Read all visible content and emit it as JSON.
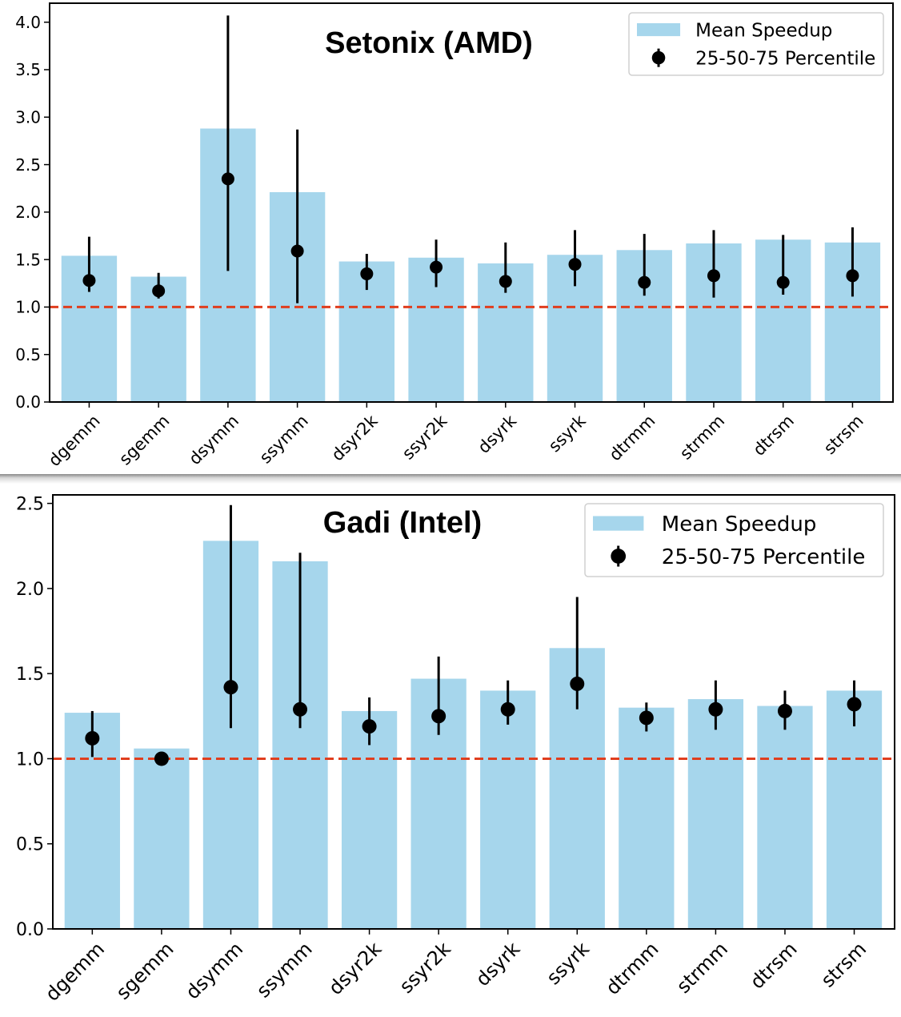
{
  "chart_data": [
    {
      "type": "bar",
      "title": "Setonix (AMD)",
      "xlabel": "",
      "ylabel": "",
      "ylim": [
        0,
        4.2
      ],
      "yticks": [
        "0.0",
        "0.5",
        "1.0",
        "1.5",
        "2.0",
        "2.5",
        "3.0",
        "3.5",
        "4.0"
      ],
      "categories": [
        "dgemm",
        "sgemm",
        "dsymm",
        "ssymm",
        "dsyr2k",
        "ssyr2k",
        "dsyrk",
        "ssyrk",
        "dtrmm",
        "strmm",
        "dtrsm",
        "strsm"
      ],
      "series": [
        {
          "name": "Mean Speedup",
          "values": [
            1.54,
            1.32,
            2.88,
            2.21,
            1.48,
            1.52,
            1.46,
            1.55,
            1.6,
            1.67,
            1.71,
            1.68
          ],
          "color": "#a6d6ec"
        },
        {
          "name": "25-50-75 Percentile",
          "median": [
            1.28,
            1.17,
            2.35,
            1.59,
            1.35,
            1.42,
            1.27,
            1.45,
            1.26,
            1.33,
            1.26,
            1.33
          ],
          "p25": [
            1.16,
            1.09,
            1.38,
            1.04,
            1.18,
            1.21,
            1.15,
            1.22,
            1.12,
            1.1,
            1.13,
            1.11
          ],
          "p75": [
            1.74,
            1.36,
            4.07,
            2.87,
            1.56,
            1.71,
            1.68,
            1.81,
            1.77,
            1.81,
            1.76,
            1.84
          ],
          "color": "#000000"
        }
      ],
      "reference_line": {
        "y": 1.0,
        "color": "#e03e1e",
        "style": "dashed"
      },
      "legend": {
        "position": "top-right",
        "entries": [
          "Mean Speedup",
          "25-50-75 Percentile"
        ]
      },
      "grid": false
    },
    {
      "type": "bar",
      "title": "Gadi (Intel)",
      "xlabel": "",
      "ylabel": "",
      "ylim": [
        0,
        2.55
      ],
      "yticks": [
        "0.0",
        "0.5",
        "1.0",
        "1.5",
        "2.0",
        "2.5"
      ],
      "categories": [
        "dgemm",
        "sgemm",
        "dsymm",
        "ssymm",
        "dsyr2k",
        "ssyr2k",
        "dsyrk",
        "ssyrk",
        "dtrmm",
        "strmm",
        "dtrsm",
        "strsm"
      ],
      "series": [
        {
          "name": "Mean Speedup",
          "values": [
            1.27,
            1.06,
            2.28,
            2.16,
            1.28,
            1.47,
            1.4,
            1.65,
            1.3,
            1.35,
            1.31,
            1.4
          ],
          "color": "#a6d6ec"
        },
        {
          "name": "25-50-75 Percentile",
          "median": [
            1.12,
            1.0,
            1.42,
            1.29,
            1.19,
            1.25,
            1.29,
            1.44,
            1.24,
            1.29,
            1.28,
            1.32
          ],
          "p25": [
            1.01,
            1.0,
            1.18,
            1.18,
            1.08,
            1.14,
            1.2,
            1.29,
            1.16,
            1.17,
            1.17,
            1.19
          ],
          "p75": [
            1.28,
            1.0,
            2.49,
            2.21,
            1.36,
            1.6,
            1.46,
            1.95,
            1.33,
            1.46,
            1.4,
            1.46
          ],
          "color": "#000000"
        }
      ],
      "reference_line": {
        "y": 1.0,
        "color": "#e03e1e",
        "style": "dashed"
      },
      "legend": {
        "position": "top-right",
        "entries": [
          "Mean Speedup",
          "25-50-75 Percentile"
        ]
      },
      "grid": false
    }
  ]
}
